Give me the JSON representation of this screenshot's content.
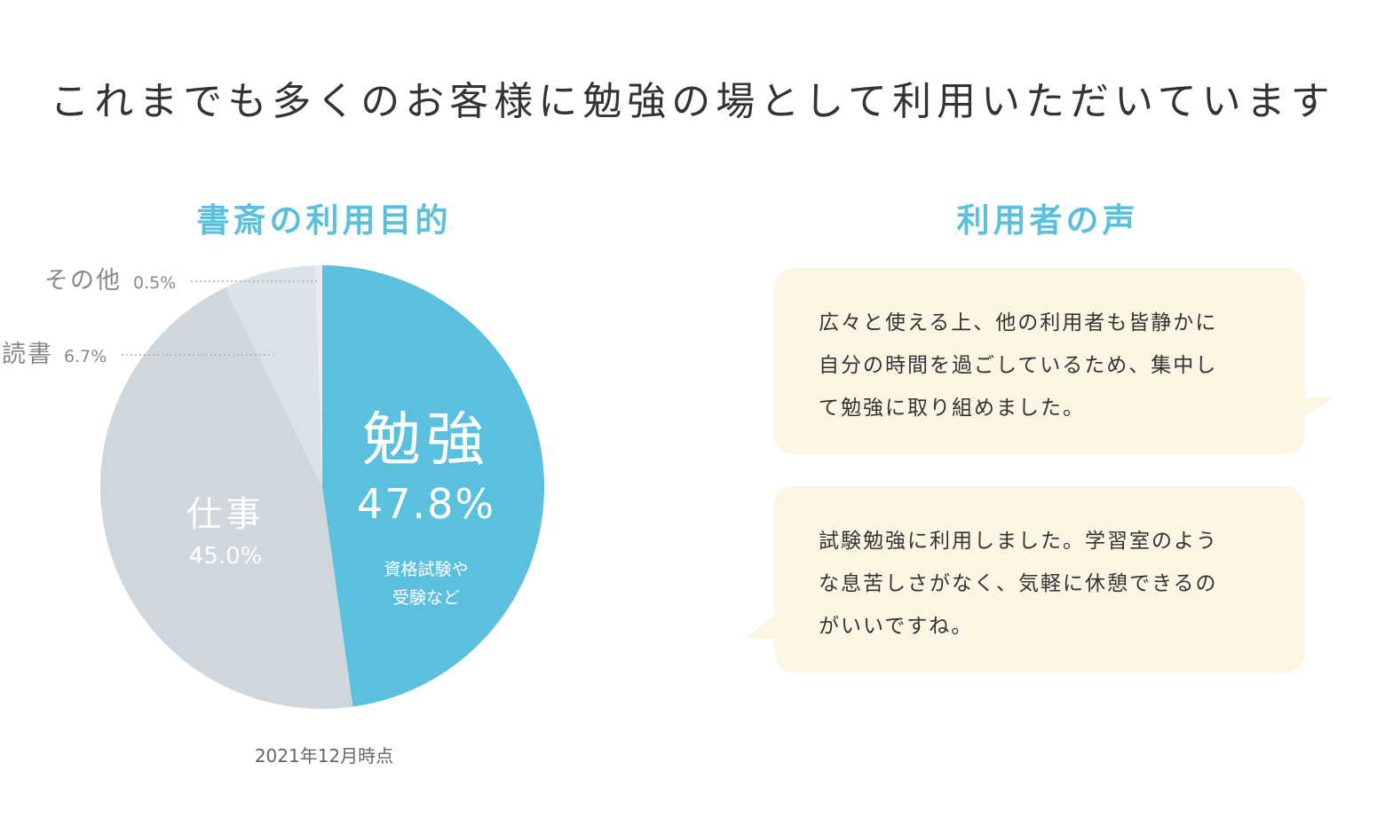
{
  "title": "これまでも多くのお客様に勉強の場として利用いただいています",
  "colors": {
    "accent": "#5bc0de",
    "study": "#5bc0de",
    "work": "#cfd7dc",
    "reading": "#dce3e8",
    "other": "#e8ecee",
    "bubble": "#faf6e3"
  },
  "chart_data": {
    "type": "pie",
    "title": "書斎の利用目的",
    "categories": [
      "勉強",
      "仕事",
      "読書",
      "その他"
    ],
    "values": [
      47.8,
      45.0,
      6.7,
      0.5
    ],
    "value_labels": [
      "47.8%",
      "45.0%",
      "6.7%",
      "0.5%"
    ],
    "annotations": {
      "study_sub": [
        "資格試験や",
        "受験など"
      ]
    },
    "note": "2021年12月時点"
  },
  "voices": {
    "title": "利用者の声",
    "items": [
      {
        "lines": [
          "広々と使える上、他の利用者も皆静かに",
          "自分の時間を過ごしているため、集中し",
          "て勉強に取り組めました。"
        ]
      },
      {
        "lines": [
          "試験勉強に利用しました。学習室のよう",
          "な息苦しさがなく、気軽に休憩できるの",
          "がいいですね。"
        ]
      }
    ]
  }
}
